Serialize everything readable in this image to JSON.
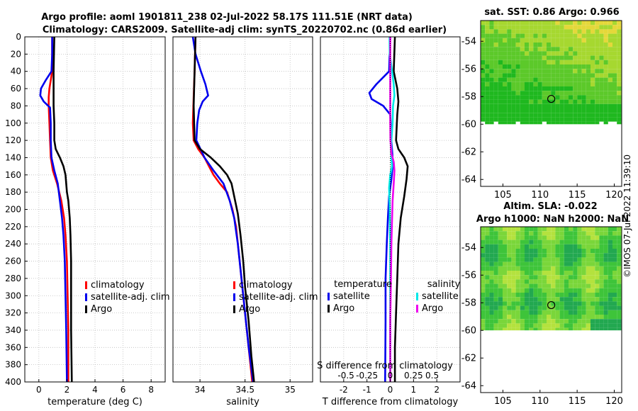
{
  "header": {
    "title_line1": "Argo profile: aoml 1901811_238 02-Jul-2022 58.17S 111.51E (NRT data)",
    "title_line2": "Climatology: CARS2009. Satellite-adj clim: synTS_20220702.nc (0.86d earlier)"
  },
  "side_label": "©IMOS 07-Jul-2022 11:39:10",
  "colors": {
    "climatology": "#ff0000",
    "satellite": "#0000ee",
    "argo": "#000000",
    "sat_salinity": "#00e8e8",
    "argo_salinity": "#ee00ee"
  },
  "chart_data": [
    {
      "type": "line",
      "id": "temperature",
      "xlabel": "temperature (deg C)",
      "xlim": [
        -1,
        9
      ],
      "xticks": [
        0,
        2,
        4,
        6,
        8
      ],
      "xtick_labels": [
        "0",
        "2",
        "4",
        "6",
        "8"
      ],
      "ylim": [
        0,
        400
      ],
      "yticks": [
        0,
        20,
        40,
        60,
        80,
        100,
        120,
        140,
        160,
        180,
        200,
        220,
        240,
        260,
        280,
        300,
        320,
        340,
        360,
        380,
        400
      ],
      "ytick_labels": [
        "0",
        "20",
        "40",
        "60",
        "80",
        "100",
        "120",
        "140",
        "160",
        "180",
        "200",
        "220",
        "240",
        "260",
        "280",
        "300",
        "320",
        "340",
        "360",
        "380",
        "400"
      ],
      "legend": [
        "climatology",
        "satellite-adj. clim",
        "Argo"
      ],
      "series": [
        {
          "name": "climatology",
          "color": "#ff0000",
          "points": [
            [
              0.95,
              0
            ],
            [
              0.95,
              40
            ],
            [
              0.75,
              60
            ],
            [
              0.7,
              70
            ],
            [
              0.7,
              80
            ],
            [
              0.75,
              100
            ],
            [
              0.8,
              120
            ],
            [
              0.85,
              140
            ],
            [
              1.0,
              155
            ],
            [
              1.3,
              170
            ],
            [
              1.6,
              190
            ],
            [
              1.8,
              210
            ],
            [
              1.9,
              230
            ],
            [
              2.0,
              260
            ],
            [
              2.05,
              300
            ],
            [
              2.1,
              340
            ],
            [
              2.1,
              400
            ]
          ]
        },
        {
          "name": "satellite-adj. clim",
          "color": "#0000ee",
          "points": [
            [
              0.95,
              0
            ],
            [
              0.95,
              20
            ],
            [
              0.9,
              40
            ],
            [
              0.5,
              50
            ],
            [
              0.15,
              60
            ],
            [
              0.1,
              68
            ],
            [
              0.35,
              75
            ],
            [
              0.8,
              82
            ],
            [
              0.85,
              100
            ],
            [
              0.85,
              120
            ],
            [
              0.9,
              140
            ],
            [
              1.1,
              155
            ],
            [
              1.35,
              170
            ],
            [
              1.5,
              190
            ],
            [
              1.65,
              210
            ],
            [
              1.75,
              230
            ],
            [
              1.85,
              260
            ],
            [
              1.9,
              300
            ],
            [
              1.95,
              340
            ],
            [
              2.0,
              400
            ]
          ]
        },
        {
          "name": "Argo",
          "color": "#000000",
          "points": [
            [
              1.1,
              0
            ],
            [
              1.05,
              40
            ],
            [
              1.05,
              80
            ],
            [
              1.1,
              100
            ],
            [
              1.1,
              120
            ],
            [
              1.2,
              130
            ],
            [
              1.5,
              140
            ],
            [
              1.75,
              150
            ],
            [
              1.9,
              160
            ],
            [
              2.0,
              180
            ],
            [
              2.1,
              190
            ],
            [
              2.2,
              210
            ],
            [
              2.25,
              230
            ],
            [
              2.3,
              260
            ],
            [
              2.3,
              300
            ],
            [
              2.3,
              340
            ],
            [
              2.35,
              400
            ]
          ]
        }
      ]
    },
    {
      "type": "line",
      "id": "salinity",
      "xlabel": "salinity",
      "xlim": [
        33.7,
        35.25
      ],
      "xticks": [
        34,
        34.5,
        35
      ],
      "xtick_labels": [
        "34",
        "34.5",
        "35"
      ],
      "ylim": [
        0,
        400
      ],
      "legend": [
        "climatology",
        "satellite-adj. clim",
        "Argo"
      ],
      "series": [
        {
          "name": "climatology",
          "color": "#ff0000",
          "points": [
            [
              33.95,
              0
            ],
            [
              33.94,
              40
            ],
            [
              33.93,
              70
            ],
            [
              33.92,
              100
            ],
            [
              33.93,
              120
            ],
            [
              33.98,
              130
            ],
            [
              34.05,
              140
            ],
            [
              34.1,
              150
            ],
            [
              34.15,
              160
            ],
            [
              34.22,
              170
            ],
            [
              34.3,
              180
            ],
            [
              34.36,
              200
            ],
            [
              34.4,
              220
            ],
            [
              34.44,
              260
            ],
            [
              34.48,
              300
            ],
            [
              34.52,
              340
            ],
            [
              34.58,
              400
            ]
          ]
        },
        {
          "name": "satellite-adj. clim",
          "color": "#0000ee",
          "points": [
            [
              33.92,
              0
            ],
            [
              33.95,
              20
            ],
            [
              34.01,
              40
            ],
            [
              34.06,
              55
            ],
            [
              34.09,
              68
            ],
            [
              34.03,
              75
            ],
            [
              33.99,
              85
            ],
            [
              33.97,
              100
            ],
            [
              33.96,
              120
            ],
            [
              34.05,
              140
            ],
            [
              34.15,
              155
            ],
            [
              34.26,
              170
            ],
            [
              34.33,
              190
            ],
            [
              34.38,
              210
            ],
            [
              34.42,
              240
            ],
            [
              34.46,
              280
            ],
            [
              34.5,
              320
            ],
            [
              34.54,
              360
            ],
            [
              34.59,
              400
            ]
          ]
        },
        {
          "name": "Argo",
          "color": "#000000",
          "points": [
            [
              33.95,
              0
            ],
            [
              33.94,
              40
            ],
            [
              33.93,
              80
            ],
            [
              33.94,
              120
            ],
            [
              34.0,
              130
            ],
            [
              34.12,
              140
            ],
            [
              34.22,
              150
            ],
            [
              34.3,
              160
            ],
            [
              34.35,
              170
            ],
            [
              34.38,
              185
            ],
            [
              34.42,
              205
            ],
            [
              34.45,
              230
            ],
            [
              34.48,
              260
            ],
            [
              34.5,
              290
            ],
            [
              34.54,
              330
            ],
            [
              34.57,
              370
            ],
            [
              34.6,
              400
            ]
          ]
        }
      ]
    },
    {
      "type": "line",
      "id": "difference",
      "xlabel": "T difference from climatology",
      "xlim": [
        -3,
        3
      ],
      "xticks": [
        -2,
        -1,
        0,
        1,
        2
      ],
      "xtick_labels": [
        "-2",
        "-1",
        "0",
        "1",
        "2"
      ],
      "top_xlabel": "S difference from climatology",
      "top_xtick_labels": [
        "-0.5",
        "-0.25",
        "0",
        "0.25",
        "0.5"
      ],
      "ylim": [
        0,
        400
      ],
      "legend_left_title": "temperature",
      "legend_left": [
        "satellite",
        "Argo"
      ],
      "legend_right_title": "salinity",
      "legend_right": [
        "satellite",
        "Argo"
      ],
      "series": [
        {
          "name": "T satellite",
          "color": "#0000ee",
          "points": [
            [
              0.0,
              0
            ],
            [
              -0.05,
              40
            ],
            [
              -0.6,
              55
            ],
            [
              -0.9,
              65
            ],
            [
              -0.8,
              72
            ],
            [
              -0.3,
              80
            ],
            [
              0.0,
              90
            ],
            [
              0.05,
              120
            ],
            [
              0.1,
              140
            ],
            [
              0.1,
              150
            ],
            [
              0.05,
              165
            ],
            [
              -0.05,
              185
            ],
            [
              -0.1,
              210
            ],
            [
              -0.15,
              240
            ],
            [
              -0.2,
              280
            ],
            [
              -0.2,
              330
            ],
            [
              -0.22,
              400
            ]
          ]
        },
        {
          "name": "T Argo",
          "color": "#000000",
          "points": [
            [
              0.2,
              0
            ],
            [
              0.15,
              40
            ],
            [
              0.3,
              60
            ],
            [
              0.35,
              75
            ],
            [
              0.3,
              90
            ],
            [
              0.25,
              120
            ],
            [
              0.35,
              130
            ],
            [
              0.6,
              140
            ],
            [
              0.75,
              150
            ],
            [
              0.7,
              165
            ],
            [
              0.6,
              185
            ],
            [
              0.45,
              210
            ],
            [
              0.35,
              240
            ],
            [
              0.3,
              280
            ],
            [
              0.25,
              320
            ],
            [
              0.2,
              360
            ],
            [
              0.2,
              400
            ]
          ]
        },
        {
          "name": "S satellite",
          "color": "#00e8e8",
          "points": [
            [
              -0.03,
              0
            ],
            [
              -0.02,
              20
            ],
            [
              0.08,
              40
            ],
            [
              0.15,
              55
            ],
            [
              0.18,
              68
            ],
            [
              0.12,
              80
            ],
            [
              0.1,
              100
            ],
            [
              0.05,
              120
            ],
            [
              0.05,
              140
            ],
            [
              0.08,
              150
            ],
            [
              0.0,
              160
            ],
            [
              -0.05,
              175
            ],
            [
              -0.02,
              200
            ],
            [
              0.0,
              240
            ],
            [
              0.0,
              400
            ]
          ]
        },
        {
          "name": "S Argo",
          "color": "#ee00ee",
          "points": [
            [
              0.0,
              0
            ],
            [
              0.0,
              40
            ],
            [
              0.0,
              80
            ],
            [
              0.0,
              100
            ],
            [
              0.01,
              120
            ],
            [
              0.05,
              135
            ],
            [
              0.15,
              145
            ],
            [
              0.18,
              155
            ],
            [
              0.15,
              170
            ],
            [
              0.1,
              190
            ],
            [
              0.08,
              210
            ],
            [
              0.05,
              240
            ],
            [
              0.03,
              280
            ],
            [
              0.0,
              330
            ],
            [
              0.0,
              400
            ]
          ]
        },
        {
          "name": "zero reference",
          "color": "#000000",
          "points": [
            [
              0,
              0
            ],
            [
              0,
              400
            ]
          ]
        }
      ]
    },
    {
      "type": "heatmap",
      "id": "sst_map",
      "title": "sat. SST: 0.86 Argo: 0.966",
      "xlim": [
        102,
        121
      ],
      "xticks": [
        105,
        110,
        115,
        120
      ],
      "xtick_labels": [
        "105",
        "110",
        "115",
        "120"
      ],
      "ylim": [
        -64.5,
        -52.5
      ],
      "yticks": [
        -54,
        -56,
        -58,
        -60,
        -62,
        -64
      ],
      "ytick_labels": [
        "-54",
        "-56",
        "-58",
        "-60",
        "-62",
        "-64"
      ],
      "data_ylim": [
        -60,
        -52.5
      ],
      "marker": {
        "lon": 111.51,
        "lat": -58.17
      },
      "palette": [
        "#1fb81f",
        "#5cc92a",
        "#a6d830",
        "#e4d83a",
        "#f0a028"
      ]
    },
    {
      "type": "heatmap",
      "id": "sla_map",
      "title": "Altim. SLA: -0.022",
      "subtitle": "Argo h1000: NaN h2000: NaN",
      "xlim": [
        102,
        121
      ],
      "xticks": [
        105,
        110,
        115,
        120
      ],
      "xtick_labels": [
        "105",
        "110",
        "115",
        "120"
      ],
      "ylim": [
        -64.5,
        -52.5
      ],
      "yticks": [
        -54,
        -56,
        -58,
        -60,
        -62,
        -64
      ],
      "ytick_labels": [
        "-54",
        "-56",
        "-58",
        "-60",
        "-62",
        "-64"
      ],
      "data_ylim": [
        -60,
        -52.5
      ],
      "marker": {
        "lon": 111.51,
        "lat": -58.17
      },
      "palette": [
        "#22a850",
        "#3ec43a",
        "#7ad63a",
        "#b4e23e"
      ]
    }
  ]
}
